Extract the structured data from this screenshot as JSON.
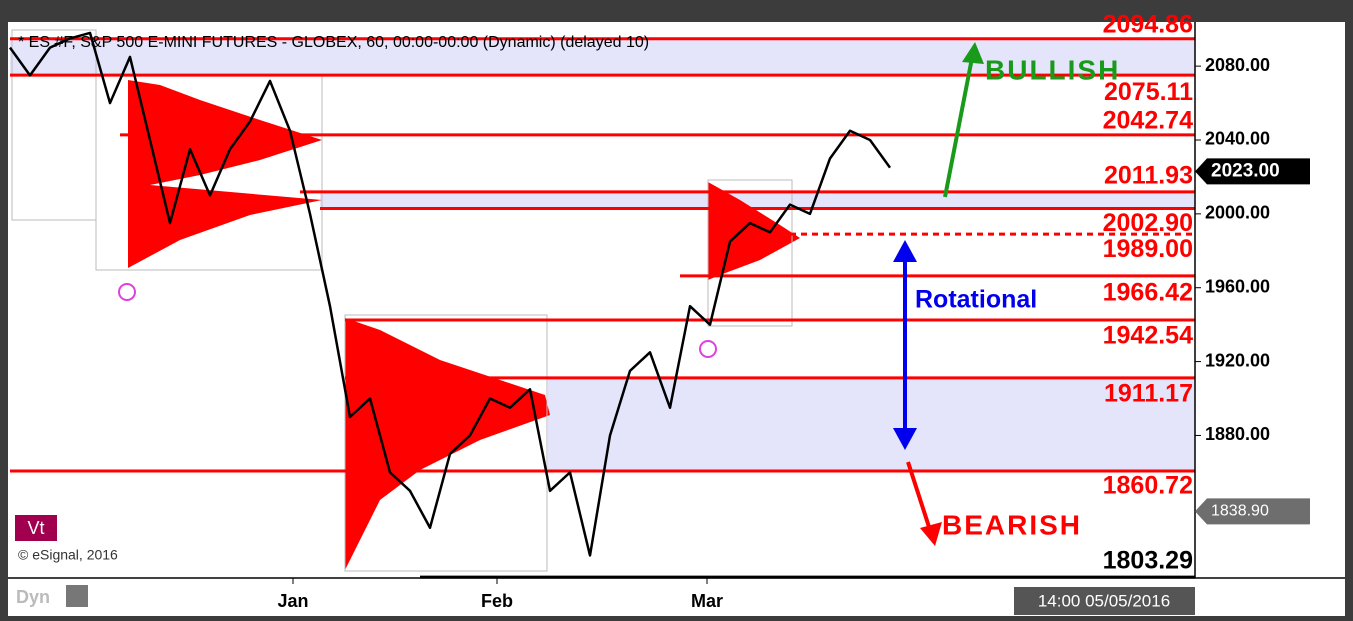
{
  "chart_data": {
    "type": "line",
    "title": "* ES #F, S&P 500 E-MINI FUTURES - GLOBEX, 60, 00:00-00:00 (Dynamic) (delayed 10)",
    "color": "#000000",
    "values": [
      2090,
      2075,
      2090,
      2095,
      2098,
      2060,
      2085,
      2040,
      1995,
      2035,
      2010,
      2035,
      2050,
      2072,
      2045,
      2000,
      1950,
      1890,
      1900,
      1860,
      1850,
      1830,
      1870,
      1880,
      1900,
      1895,
      1905,
      1850,
      1860,
      1815,
      1880,
      1915,
      1925,
      1895,
      1950,
      1940,
      1985,
      1995,
      1990,
      2005,
      2000,
      2030,
      2045,
      2040,
      2025
    ],
    "xlim": [
      0,
      59.25
    ],
    "xticks": [
      {
        "value": 14.15,
        "label": "Jan"
      },
      {
        "value": 24.35,
        "label": "Feb"
      },
      {
        "value": 34.85,
        "label": "Mar"
      }
    ],
    "ylim": [
      1802.8,
      2103.9
    ],
    "yticks": [
      {
        "value": 2080,
        "label": "2080.00"
      },
      {
        "value": 2040,
        "label": "2040.00"
      },
      {
        "value": 2000,
        "label": "2000.00"
      },
      {
        "value": 1960,
        "label": "1960.00"
      },
      {
        "value": 1920,
        "label": "1920.00"
      },
      {
        "value": 1880,
        "label": "1880.00"
      }
    ],
    "levels": [
      {
        "value": 2094.86,
        "label": "2094.86"
      },
      {
        "value": 2075.11,
        "label": "2075.11"
      },
      {
        "value": 2042.74,
        "label": "2042.74"
      },
      {
        "value": 2011.93,
        "label": "2011.93"
      },
      {
        "value": 2002.9,
        "label": "2002.90"
      },
      {
        "value": 1989,
        "label": "1989.00"
      },
      {
        "value": 1966.42,
        "label": "1966.42"
      },
      {
        "value": 1942.54,
        "label": "1942.54"
      },
      {
        "value": 1911.17,
        "label": "1911.17"
      },
      {
        "value": 1860.72,
        "label": "1860.72"
      },
      {
        "value": 1803.29,
        "label": "1803.29"
      }
    ],
    "price_tags": [
      {
        "value": 2023,
        "label": "2023.00",
        "color": "#000000"
      },
      {
        "value": 1838.9,
        "label": "1838.90",
        "color": "#6e6e6e"
      }
    ],
    "annotations": [
      "BULLISH",
      "Rotational",
      "BEARISH"
    ],
    "watermark": "© eSignal, 2016",
    "badge": "Vt",
    "footer_left": "Dyn",
    "timestamp": "14:00 05/05/2016"
  }
}
